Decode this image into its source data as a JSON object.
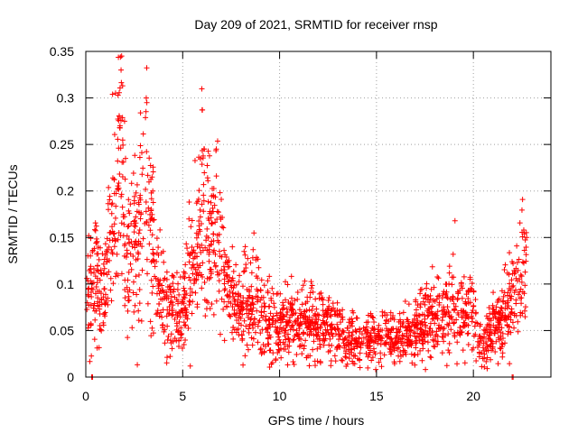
{
  "chart_data": {
    "type": "scatter",
    "title": "Day 209 of 2021, SRMTID for receiver rnsp",
    "xlabel": "GPS time / hours",
    "ylabel": "SRMTID / TECUs",
    "xlim": [
      0,
      24
    ],
    "ylim": [
      0,
      0.35
    ],
    "xticks": [
      "0",
      "5",
      "10",
      "15",
      "20"
    ],
    "yticks": [
      "0",
      "0.05",
      "0.1",
      "0.15",
      "0.2",
      "0.25",
      "0.3",
      "0.35"
    ],
    "grid": true,
    "legend": "none",
    "series": [
      {
        "name": "SRMTID",
        "marker": "plus",
        "color": "#ff0000",
        "trend": [
          [
            0.0,
            0.082
          ],
          [
            0.25,
            0.1
          ],
          [
            0.5,
            0.115
          ],
          [
            0.75,
            0.08
          ],
          [
            1.0,
            0.085
          ],
          [
            1.25,
            0.145
          ],
          [
            1.5,
            0.19
          ],
          [
            1.75,
            0.235
          ],
          [
            2.0,
            0.14
          ],
          [
            2.25,
            0.105
          ],
          [
            2.5,
            0.13
          ],
          [
            2.75,
            0.175
          ],
          [
            3.0,
            0.225
          ],
          [
            3.25,
            0.18
          ],
          [
            3.5,
            0.12
          ],
          [
            3.75,
            0.1
          ],
          [
            4.0,
            0.085
          ],
          [
            4.25,
            0.075
          ],
          [
            4.5,
            0.065
          ],
          [
            4.75,
            0.06
          ],
          [
            5.0,
            0.065
          ],
          [
            5.25,
            0.09
          ],
          [
            5.5,
            0.13
          ],
          [
            5.75,
            0.12
          ],
          [
            6.0,
            0.19
          ],
          [
            6.25,
            0.14
          ],
          [
            6.5,
            0.14
          ],
          [
            6.75,
            0.15
          ],
          [
            7.0,
            0.12
          ],
          [
            7.25,
            0.095
          ],
          [
            7.5,
            0.085
          ],
          [
            7.75,
            0.075
          ],
          [
            8.0,
            0.068
          ],
          [
            8.25,
            0.08
          ],
          [
            8.5,
            0.07
          ],
          [
            8.75,
            0.095
          ],
          [
            9.0,
            0.072
          ],
          [
            9.25,
            0.065
          ],
          [
            9.5,
            0.06
          ],
          [
            9.75,
            0.058
          ],
          [
            10.0,
            0.055
          ],
          [
            10.5,
            0.06
          ],
          [
            11.0,
            0.055
          ],
          [
            11.5,
            0.06
          ],
          [
            12.0,
            0.05
          ],
          [
            12.5,
            0.055
          ],
          [
            13.0,
            0.045
          ],
          [
            13.5,
            0.04
          ],
          [
            14.0,
            0.035
          ],
          [
            14.5,
            0.04
          ],
          [
            15.0,
            0.042
          ],
          [
            15.5,
            0.045
          ],
          [
            16.0,
            0.04
          ],
          [
            16.5,
            0.045
          ],
          [
            17.0,
            0.05
          ],
          [
            17.5,
            0.055
          ],
          [
            18.0,
            0.06
          ],
          [
            18.5,
            0.065
          ],
          [
            19.0,
            0.072
          ],
          [
            19.5,
            0.06
          ],
          [
            20.0,
            0.065
          ],
          [
            20.25,
            0.045
          ],
          [
            20.5,
            0.03
          ],
          [
            20.75,
            0.04
          ],
          [
            21.0,
            0.05
          ],
          [
            21.25,
            0.055
          ],
          [
            21.5,
            0.06
          ],
          [
            21.75,
            0.07
          ],
          [
            22.0,
            0.08
          ],
          [
            22.25,
            0.09
          ],
          [
            22.5,
            0.11
          ],
          [
            22.75,
            0.12
          ]
        ],
        "isolated_points": [
          [
            0.3,
            0.0
          ],
          [
            0.35,
            0.0
          ],
          [
            22.0,
            0.0
          ],
          [
            22.05,
            0.0
          ]
        ],
        "peaks": [
          [
            1.85,
            0.345
          ],
          [
            1.82,
            0.33
          ],
          [
            1.9,
            0.313
          ],
          [
            3.12,
            0.3
          ],
          [
            3.15,
            0.295
          ],
          [
            2.0,
            0.275
          ],
          [
            6.1,
            0.245
          ],
          [
            19.05,
            0.168
          ],
          [
            22.6,
            0.158
          ],
          [
            22.75,
            0.15
          ]
        ],
        "point_count": 2200
      }
    ]
  }
}
